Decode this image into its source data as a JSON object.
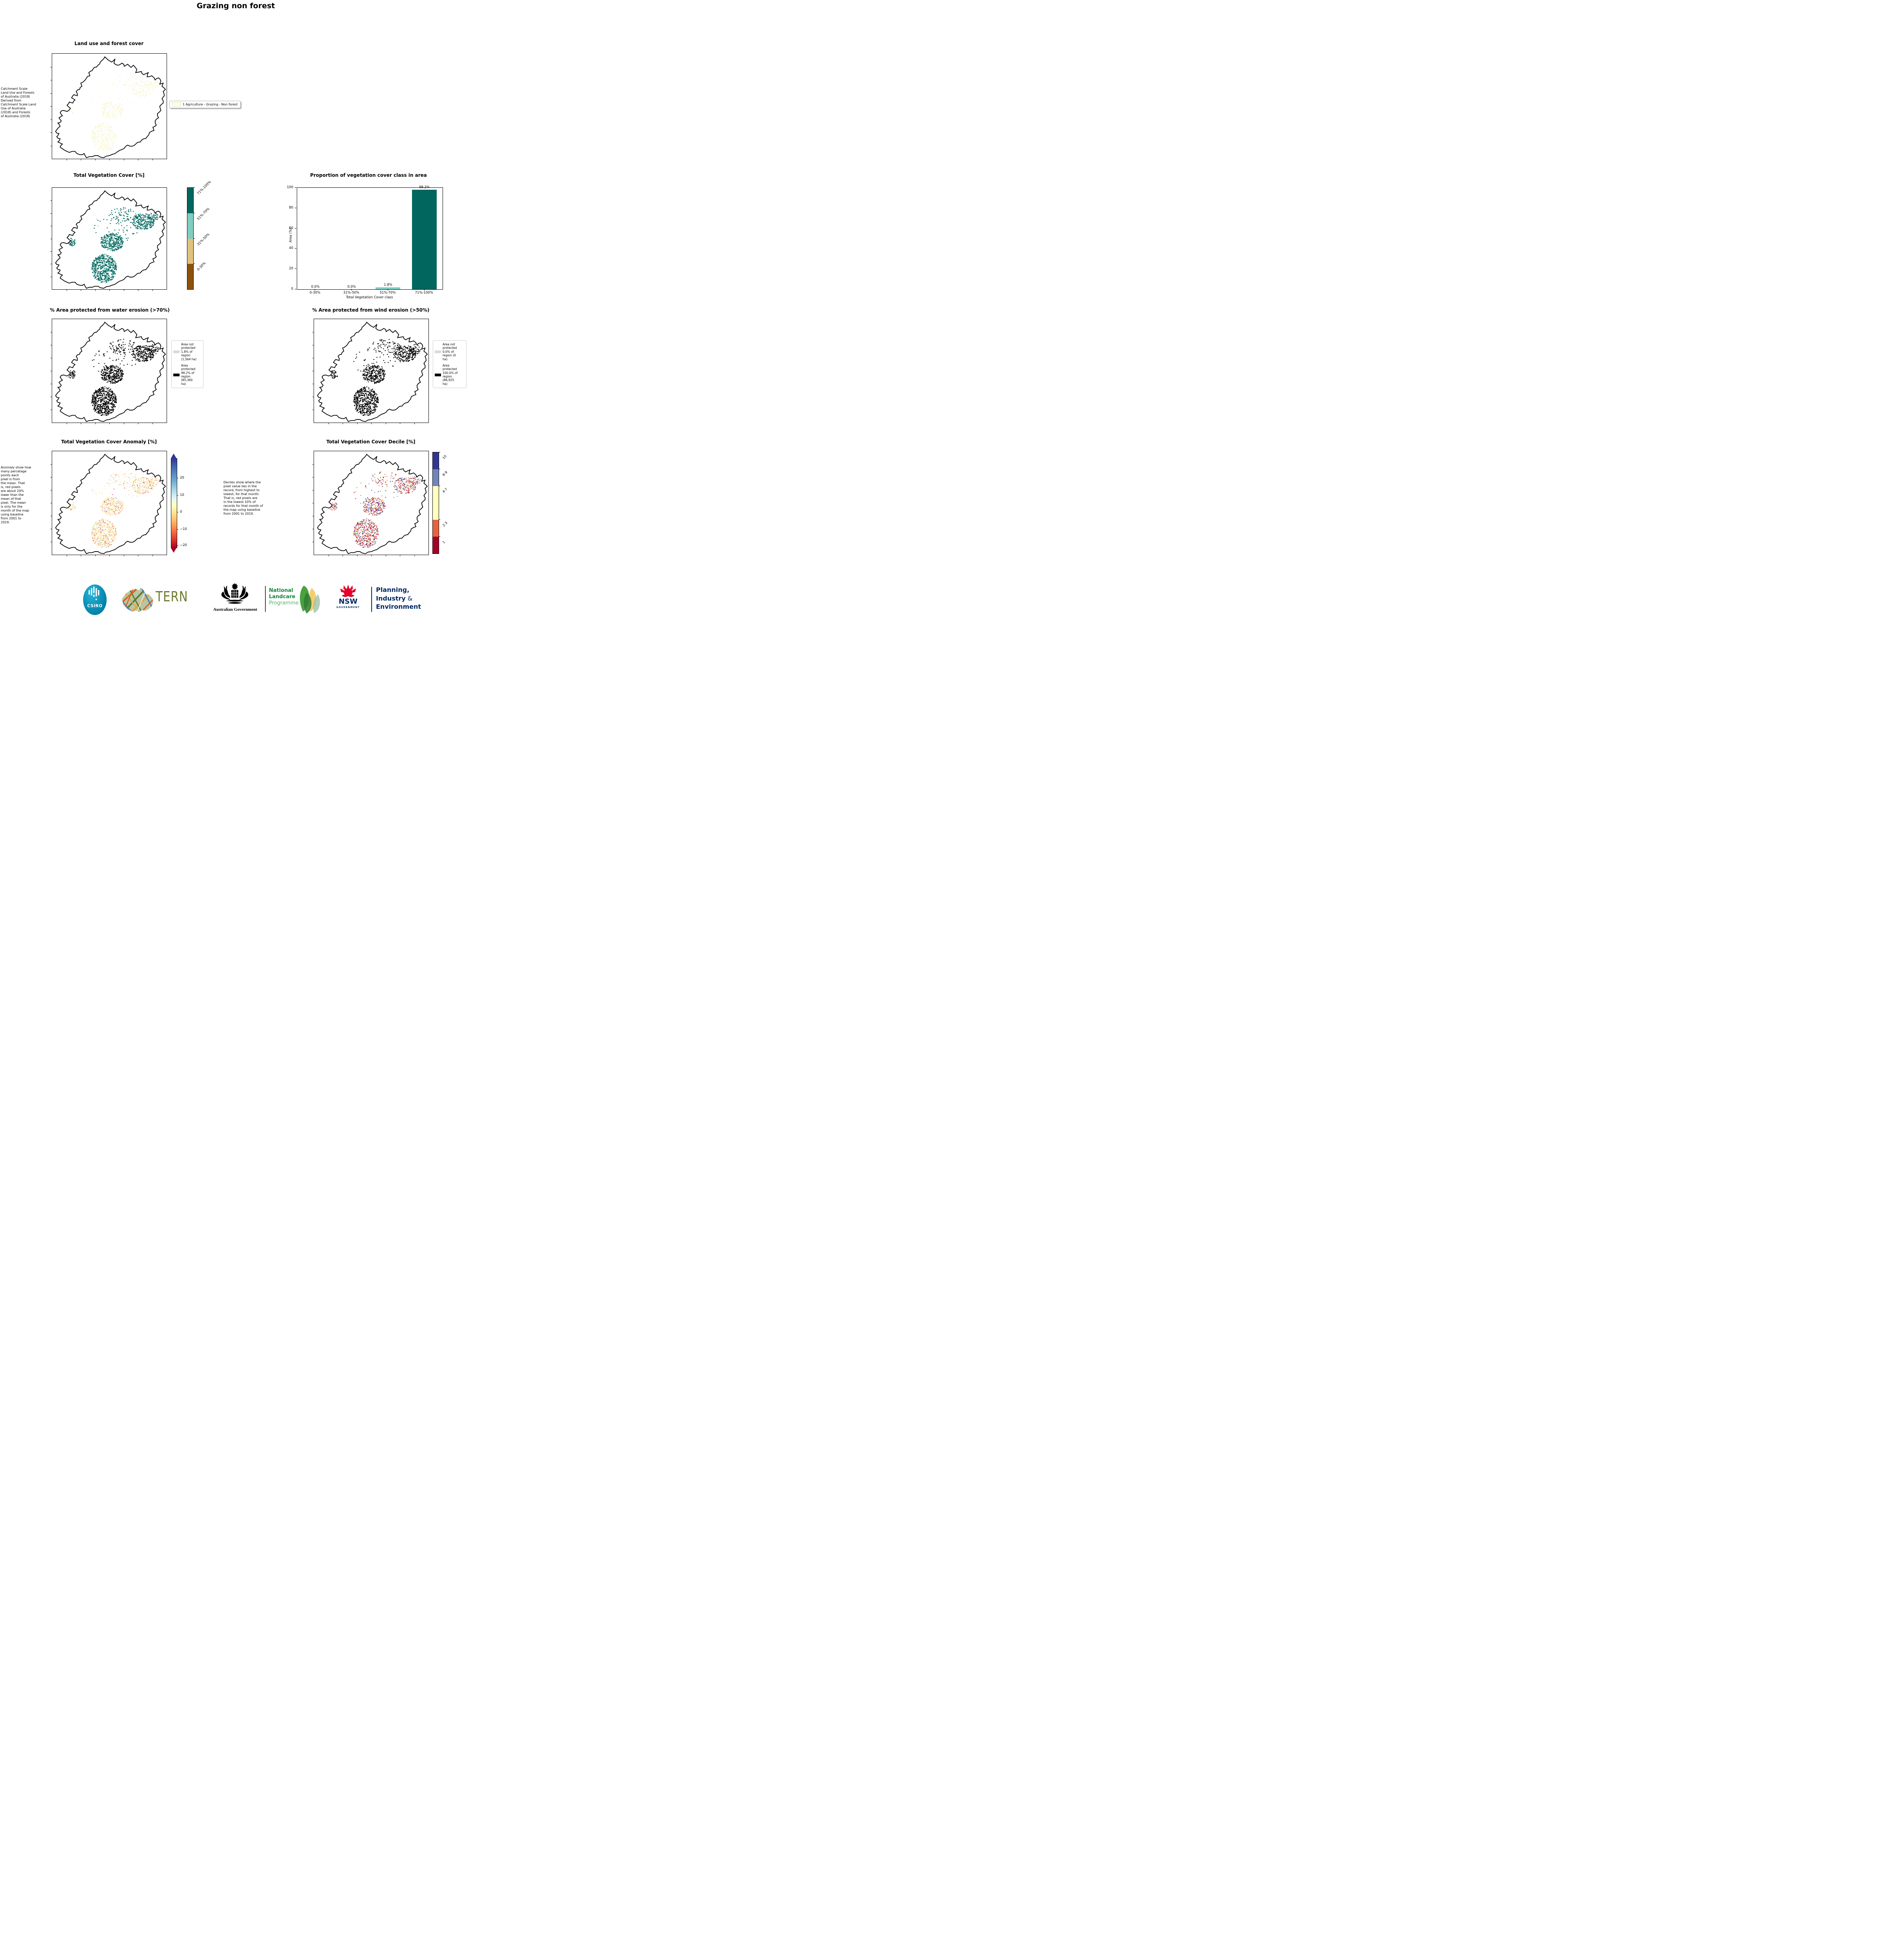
{
  "header": {
    "title": "Grazing non forest"
  },
  "colors": {
    "veg_dark_teal": "#01665e",
    "veg_light_teal": "#80cdc1",
    "veg_tan": "#dfc27d",
    "veg_brown": "#8c510a",
    "landuse_swatch": "#ffffe1",
    "not_protected_gray": "#d9d9d9",
    "protected_black": "#000000",
    "decile_navy": "#313695",
    "decile_blue": "#7084bd",
    "decile_yellow": "#ffffbf",
    "decile_orange": "#e8613c",
    "decile_red": "#a50026",
    "nsw_navy": "#002664",
    "nsw_red": "#e4012b"
  },
  "panels": {
    "landuse": {
      "title": "Land use and forest cover",
      "note": " Catchment Scale\nLand Use and Forests\nof Australia (2018)\nDerived from\nCatchment Scale Land\nUse of Australia\n(2018) and Forests\nof Australia (2018)",
      "legend_label": "1 Agriculture - Grazing - Non forest"
    },
    "vegcover": {
      "title": "Total Vegetation Cover [%]",
      "classes": [
        {
          "label": "71%-100%",
          "color": "#01665e"
        },
        {
          "label": "51%-70%",
          "color": "#80cdc1"
        },
        {
          "label": "31%-50%",
          "color": "#dfc27d"
        },
        {
          "label": "0-30%",
          "color": "#8c510a"
        }
      ]
    },
    "water": {
      "title": "% Area protected from water erosion (>70%)",
      "legend": [
        {
          "color": "#d9d9d9",
          "text": "Area not\nprotected\n1.8% of\nregion\n(1,564 ha)"
        },
        {
          "color": "#000000",
          "text": "Area\nprotected\n98.2% of\nregion\n(85,360\nha)"
        }
      ]
    },
    "wind": {
      "title": "% Area protected from wind erosion (>50%)",
      "legend": [
        {
          "color": "#d9d9d9",
          "text": "Area not\nprotected\n0.0% of\nregion (0\nha)"
        },
        {
          "color": "#000000",
          "text": "Area\nprotected\n100.0% of\nregion\n(86,925\nha)"
        }
      ]
    },
    "anomaly": {
      "title": "Total Vegetation Cover Anomaly [%]",
      "note": "Anomaly show how\nmany percetage\npoints each\npixel is from\nthe mean. That\nis, red pixels\nare about 20%\nlower than the\nmean of that\npixel. The mean\nis only for the\nmonth of the map\nusing baseline\nfrom 2001 to\n2019.",
      "ticks": [
        "20",
        "10",
        "0",
        "−10",
        "−20"
      ]
    },
    "decile": {
      "title": "Total Vegetation Cover Decile [%]",
      "note": "Deciles show where the\npixel value lies in the\nrecord, from highest to\nlowest, for that month.\nThat is, red pixels are\nin the lowest 10% of\nrecords for that month of\nthe map using baseline\nfrom 2001 to 2019.",
      "classes": [
        {
          "label": "10",
          "color": "#313695",
          "ratio": 1
        },
        {
          "label": "8-9",
          "color": "#7084bd",
          "ratio": 1
        },
        {
          "label": "4-7",
          "color": "#ffffbf",
          "ratio": 2
        },
        {
          "label": "2-3",
          "color": "#e8613c",
          "ratio": 1
        },
        {
          "label": "1",
          "color": "#a50026",
          "ratio": 1
        }
      ]
    }
  },
  "chart_data": {
    "type": "bar",
    "title": "Proportion of vegetation cover class in area",
    "categories": [
      "0-30%",
      "31%-50%",
      "51%-70%",
      "71%-100%"
    ],
    "values": [
      0.0,
      0.0,
      1.8,
      98.2
    ],
    "bar_labels": [
      "0.0%",
      "0.0%",
      "1.8%",
      "98.2%"
    ],
    "bar_colors": [
      "#01665e",
      "#01665e",
      "#80cdc1",
      "#01665e"
    ],
    "xlabel": "Total Vegetation Cover class",
    "ylabel": "Area (%)",
    "ylim": [
      0,
      100
    ],
    "yticks": [
      0,
      20,
      40,
      60,
      80,
      100
    ],
    "legend_position": "none",
    "grid": false
  },
  "logos": {
    "csiro": "CSIRO",
    "tern": "TERN",
    "aus_gov": "Australian Government",
    "nlp": {
      "line1": "National",
      "line2": "Landcare",
      "line3": "Programme"
    },
    "nsw": {
      "name": "NSW",
      "sub": "GOVERNMENT"
    },
    "pie": {
      "line1": "Planning,",
      "line2_main": "Industry",
      "amp": " &",
      "line3": "Environment"
    }
  }
}
